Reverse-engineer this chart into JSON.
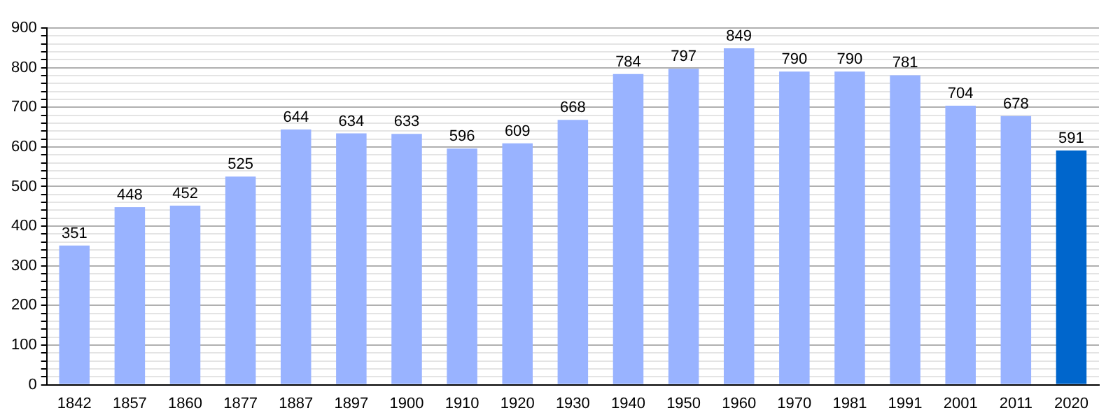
{
  "chart_data": {
    "type": "bar",
    "categories": [
      "1842",
      "1857",
      "1860",
      "1877",
      "1887",
      "1897",
      "1900",
      "1910",
      "1920",
      "1930",
      "1940",
      "1950",
      "1960",
      "1970",
      "1981",
      "1991",
      "2001",
      "2011",
      "2020"
    ],
    "values": [
      351,
      448,
      452,
      525,
      644,
      634,
      633,
      596,
      609,
      668,
      784,
      797,
      849,
      790,
      790,
      781,
      704,
      678,
      591
    ],
    "colors": [
      "#99b3ff",
      "#99b3ff",
      "#99b3ff",
      "#99b3ff",
      "#99b3ff",
      "#99b3ff",
      "#99b3ff",
      "#99b3ff",
      "#99b3ff",
      "#99b3ff",
      "#99b3ff",
      "#99b3ff",
      "#99b3ff",
      "#99b3ff",
      "#99b3ff",
      "#99b3ff",
      "#99b3ff",
      "#99b3ff",
      "#0066cc"
    ],
    "ylim": [
      0,
      900
    ],
    "yticks": [
      0,
      {
        "value": 20,
        "label": null
      },
      {
        "value": 40,
        "label": null
      },
      {
        "value": 60,
        "label": null
      },
      {
        "value": 80,
        "label": null
      },
      100,
      {
        "value": 120,
        "label": null
      },
      {
        "value": 140,
        "label": null
      },
      {
        "value": 160,
        "label": null
      },
      {
        "value": 180,
        "label": null
      },
      200,
      {
        "value": 220,
        "label": null
      },
      {
        "value": 240,
        "label": null
      },
      {
        "value": 260,
        "label": null
      },
      {
        "value": 280,
        "label": null
      },
      300,
      {
        "value": 320,
        "label": null
      },
      {
        "value": 340,
        "label": null
      },
      {
        "value": 360,
        "label": null
      },
      {
        "value": 380,
        "label": null
      },
      400,
      {
        "value": 420,
        "label": null
      },
      {
        "value": 440,
        "label": null
      },
      {
        "value": 460,
        "label": null
      },
      {
        "value": 480,
        "label": null
      },
      500,
      {
        "value": 520,
        "label": null
      },
      {
        "value": 540,
        "label": null
      },
      {
        "value": 560,
        "label": null
      },
      {
        "value": 580,
        "label": null
      },
      600,
      {
        "value": 620,
        "label": null
      },
      {
        "value": 640,
        "label": null
      },
      {
        "value": 660,
        "label": null
      },
      {
        "value": 680,
        "label": null
      },
      700,
      {
        "value": 720,
        "label": null
      },
      {
        "value": 740,
        "label": null
      },
      {
        "value": 760,
        "label": null
      },
      {
        "value": 780,
        "label": null
      },
      800,
      {
        "value": 820,
        "label": null
      },
      {
        "value": 840,
        "label": null
      },
      {
        "value": 860,
        "label": null
      },
      {
        "value": 880,
        "label": null
      },
      900
    ],
    "grid": "y",
    "data_labels": true
  }
}
